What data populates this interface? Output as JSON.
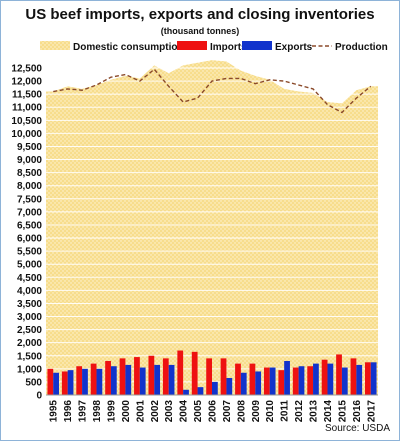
{
  "chart_data": {
    "type": "bar",
    "title": "US beef imports, exports and closing inventories",
    "subtitle": "(thousand tonnes)",
    "source": "Source: USDA",
    "categories": [
      "1995",
      "1996",
      "1997",
      "1998",
      "1999",
      "2000",
      "2001",
      "2002",
      "2003",
      "2004",
      "2005",
      "2006",
      "2007",
      "2008",
      "2009",
      "2010",
      "2011",
      "2012",
      "2013",
      "2014",
      "2015",
      "2016",
      "2017"
    ],
    "ylim": [
      0,
      12500
    ],
    "yticks": [
      0,
      500,
      1000,
      1500,
      2000,
      2500,
      3000,
      3500,
      4000,
      4500,
      5000,
      5500,
      6000,
      6500,
      7000,
      7500,
      8000,
      8500,
      9000,
      9500,
      10000,
      10500,
      11000,
      11500,
      12000,
      12500
    ],
    "ytick_labels": [
      "0",
      "500",
      "1,000",
      "1,500",
      "2,000",
      "2,500",
      "3,000",
      "3,500",
      "4,000",
      "4,500",
      "5,000",
      "5,500",
      "6,000",
      "6,500",
      "7,000",
      "7,500",
      "8,000",
      "8,500",
      "9,000",
      "9,500",
      "10,000",
      "10,500",
      "11,000",
      "11,500",
      "12,000",
      "12,500"
    ],
    "legend_position": "top",
    "grid": true,
    "series": [
      {
        "name": "Domestic consumption",
        "kind": "area",
        "color": "#f6dd90",
        "values": [
          11600,
          11800,
          11700,
          11850,
          12050,
          12200,
          12100,
          12600,
          12300,
          12600,
          12700,
          12800,
          12750,
          12400,
          12200,
          12050,
          11700,
          11600,
          11550,
          11200,
          11150,
          11650,
          11800
        ]
      },
      {
        "name": "Imports",
        "kind": "bar",
        "color": "#ee1111",
        "values": [
          1000,
          900,
          1100,
          1200,
          1300,
          1400,
          1450,
          1500,
          1400,
          1700,
          1650,
          1400,
          1400,
          1200,
          1200,
          1050,
          950,
          1050,
          1100,
          1350,
          1550,
          1400,
          1250
        ]
      },
      {
        "name": "Exports",
        "kind": "bar",
        "color": "#1133cc",
        "values": [
          850,
          950,
          1000,
          1000,
          1100,
          1150,
          1050,
          1150,
          1150,
          200,
          300,
          500,
          650,
          850,
          900,
          1050,
          1300,
          1100,
          1200,
          1200,
          1050,
          1150,
          1250
        ]
      },
      {
        "name": "Production",
        "kind": "line",
        "color": "#8b4a2a",
        "values": [
          11600,
          11700,
          11650,
          11850,
          12150,
          12250,
          12000,
          12450,
          11800,
          11200,
          11350,
          12000,
          12100,
          12100,
          11900,
          12050,
          12000,
          11850,
          11700,
          11100,
          10800,
          11350,
          11800
        ]
      }
    ]
  }
}
